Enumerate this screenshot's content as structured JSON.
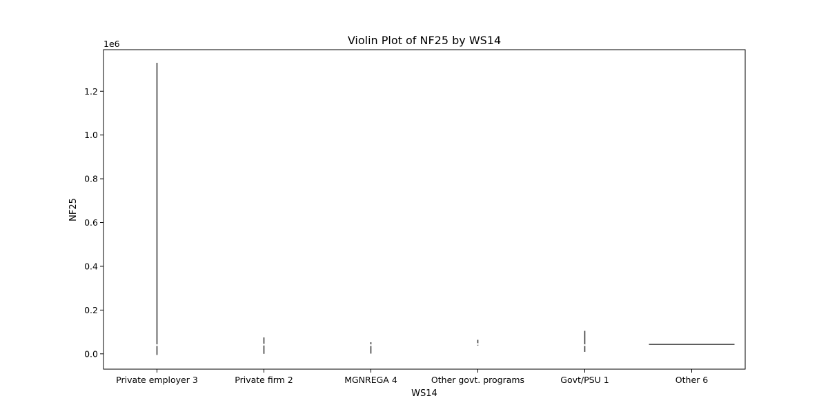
{
  "chart_data": {
    "type": "violin",
    "title": "Violin Plot of NF25 by WS14",
    "xlabel": "WS14",
    "ylabel": "NF25",
    "y_offset_label": "1e6",
    "y_scale_factor": 1000000,
    "ylim": [
      -0.07,
      1.39
    ],
    "yticks": [
      0.0,
      0.2,
      0.4,
      0.6,
      0.8,
      1.0,
      1.2
    ],
    "ytick_labels": [
      "0.0",
      "0.2",
      "0.4",
      "0.6",
      "0.8",
      "1.0",
      "1.2"
    ],
    "grid": false,
    "legend": "none",
    "line_color": "#3b3b3b",
    "categories": [
      "Private employer 3",
      "Private firm 2",
      "MGNREGA 4",
      "Other govt. programs",
      "Govt/PSU 1",
      "Other 6"
    ],
    "violins": [
      {
        "category": "Private employer 3",
        "min": -0.005,
        "max": 1.33,
        "median": 0.04
      },
      {
        "category": "Private firm 2",
        "min": 0.0,
        "max": 0.075,
        "median": 0.042
      },
      {
        "category": "MGNREGA 4",
        "min": 0.001,
        "max": 0.053,
        "median": 0.04
      },
      {
        "category": "Other govt. programs",
        "min": 0.038,
        "max": 0.064,
        "median": 0.045
      },
      {
        "category": "Govt/PSU 1",
        "min": 0.009,
        "max": 0.105,
        "median": 0.04
      },
      {
        "category": "Other 6",
        "min": 0.043,
        "max": 0.043,
        "median": 0.043
      }
    ]
  }
}
